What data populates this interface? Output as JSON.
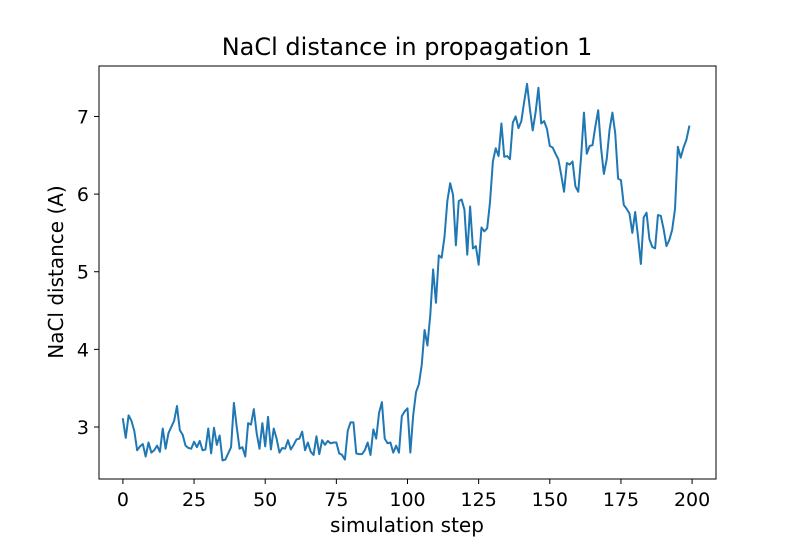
{
  "chart_data": {
    "type": "line",
    "title": "NaCl distance in propagation 1",
    "xlabel": "simulation step",
    "ylabel": "NaCl distance (A)",
    "xlim": [
      -8.4,
      208.4
    ],
    "ylim": [
      2.33,
      7.65
    ],
    "xticks": [
      0,
      25,
      50,
      75,
      100,
      125,
      150,
      175,
      200
    ],
    "yticks": [
      3,
      4,
      5,
      6,
      7
    ],
    "grid": false,
    "legend": "none",
    "color": "#1f77b4",
    "series": [
      {
        "x": [
          0,
          1,
          2,
          3,
          4,
          5,
          6,
          7,
          8,
          9,
          10,
          11,
          12,
          13,
          14,
          15,
          16,
          17,
          18,
          19,
          20,
          21,
          22,
          23,
          24,
          25,
          26,
          27,
          28,
          29,
          30,
          31,
          32,
          33,
          34,
          35,
          36,
          37,
          38,
          39,
          40,
          41,
          42,
          43,
          44,
          45,
          46,
          47,
          48,
          49,
          50,
          51,
          52,
          53,
          54,
          55,
          56,
          57,
          58,
          59,
          60,
          61,
          62,
          63,
          64,
          65,
          66,
          67,
          68,
          69,
          70,
          71,
          72,
          73,
          74,
          75,
          76,
          77,
          78,
          79,
          80,
          81,
          82,
          83,
          84,
          85,
          86,
          87,
          88,
          89,
          90,
          91,
          92,
          93,
          94,
          95,
          96,
          97,
          98,
          99,
          100,
          101,
          102,
          103,
          104,
          105,
          106,
          107,
          108,
          109,
          110,
          111,
          112,
          113,
          114,
          115,
          116,
          117,
          118,
          119,
          120,
          121,
          122,
          123,
          124,
          125,
          126,
          127,
          128,
          129,
          130,
          131,
          132,
          133,
          134,
          135,
          136,
          137,
          138,
          139,
          140,
          141,
          142,
          143,
          144,
          145,
          146,
          147,
          148,
          149,
          150,
          151,
          152,
          153,
          154,
          155,
          156,
          157,
          158,
          159,
          160,
          161,
          162,
          163,
          164,
          165,
          166,
          167,
          168,
          169,
          170,
          171,
          172,
          173,
          174,
          175,
          176,
          177,
          178,
          179,
          180,
          181,
          182,
          183,
          184,
          185,
          186,
          187,
          188,
          189,
          190,
          191,
          192,
          193,
          194,
          195,
          196,
          197,
          198,
          199
        ],
        "values": [
          3.1,
          2.86,
          3.15,
          3.08,
          2.95,
          2.7,
          2.75,
          2.78,
          2.62,
          2.8,
          2.67,
          2.7,
          2.76,
          2.68,
          2.98,
          2.72,
          2.92,
          3.0,
          3.08,
          3.27,
          2.96,
          2.9,
          2.76,
          2.73,
          2.72,
          2.81,
          2.74,
          2.82,
          2.7,
          2.71,
          2.98,
          2.66,
          2.99,
          2.77,
          2.89,
          2.57,
          2.58,
          2.66,
          2.74,
          3.31,
          3.0,
          2.72,
          2.74,
          2.62,
          3.05,
          3.03,
          3.23,
          2.92,
          2.72,
          3.05,
          2.75,
          3.13,
          2.71,
          2.98,
          2.85,
          2.67,
          2.73,
          2.72,
          2.83,
          2.71,
          2.77,
          2.84,
          2.85,
          2.94,
          2.7,
          2.8,
          2.68,
          2.64,
          2.88,
          2.65,
          2.83,
          2.77,
          2.82,
          2.79,
          2.8,
          2.8,
          2.66,
          2.64,
          2.58,
          2.95,
          3.06,
          3.06,
          2.66,
          2.65,
          2.65,
          2.7,
          2.8,
          2.64,
          2.97,
          2.85,
          3.18,
          3.32,
          2.85,
          2.79,
          2.8,
          2.67,
          2.76,
          2.67,
          3.14,
          3.2,
          3.24,
          2.67,
          3.15,
          3.45,
          3.55,
          3.8,
          4.25,
          4.05,
          4.44,
          5.03,
          4.6,
          5.21,
          5.18,
          5.45,
          5.91,
          6.14,
          5.99,
          5.34,
          5.91,
          5.93,
          5.8,
          5.22,
          5.84,
          5.3,
          5.33,
          5.09,
          5.57,
          5.52,
          5.56,
          5.9,
          6.42,
          6.59,
          6.49,
          6.91,
          6.48,
          6.49,
          6.45,
          6.92,
          7.0,
          6.85,
          6.94,
          7.19,
          7.42,
          7.1,
          6.82,
          7.05,
          7.37,
          6.91,
          6.94,
          6.84,
          6.62,
          6.6,
          6.52,
          6.45,
          6.25,
          6.03,
          6.4,
          6.38,
          6.42,
          6.1,
          6.03,
          6.48,
          7.05,
          6.52,
          6.62,
          6.63,
          6.87,
          7.08,
          6.6,
          6.26,
          6.45,
          6.83,
          7.05,
          6.78,
          6.2,
          6.18,
          5.86,
          5.81,
          5.75,
          5.5,
          5.77,
          5.45,
          5.1,
          5.7,
          5.76,
          5.42,
          5.32,
          5.3,
          5.73,
          5.72,
          5.55,
          5.33,
          5.41,
          5.54,
          5.81,
          6.61,
          6.47,
          6.6,
          6.7,
          6.87
        ]
      }
    ]
  }
}
